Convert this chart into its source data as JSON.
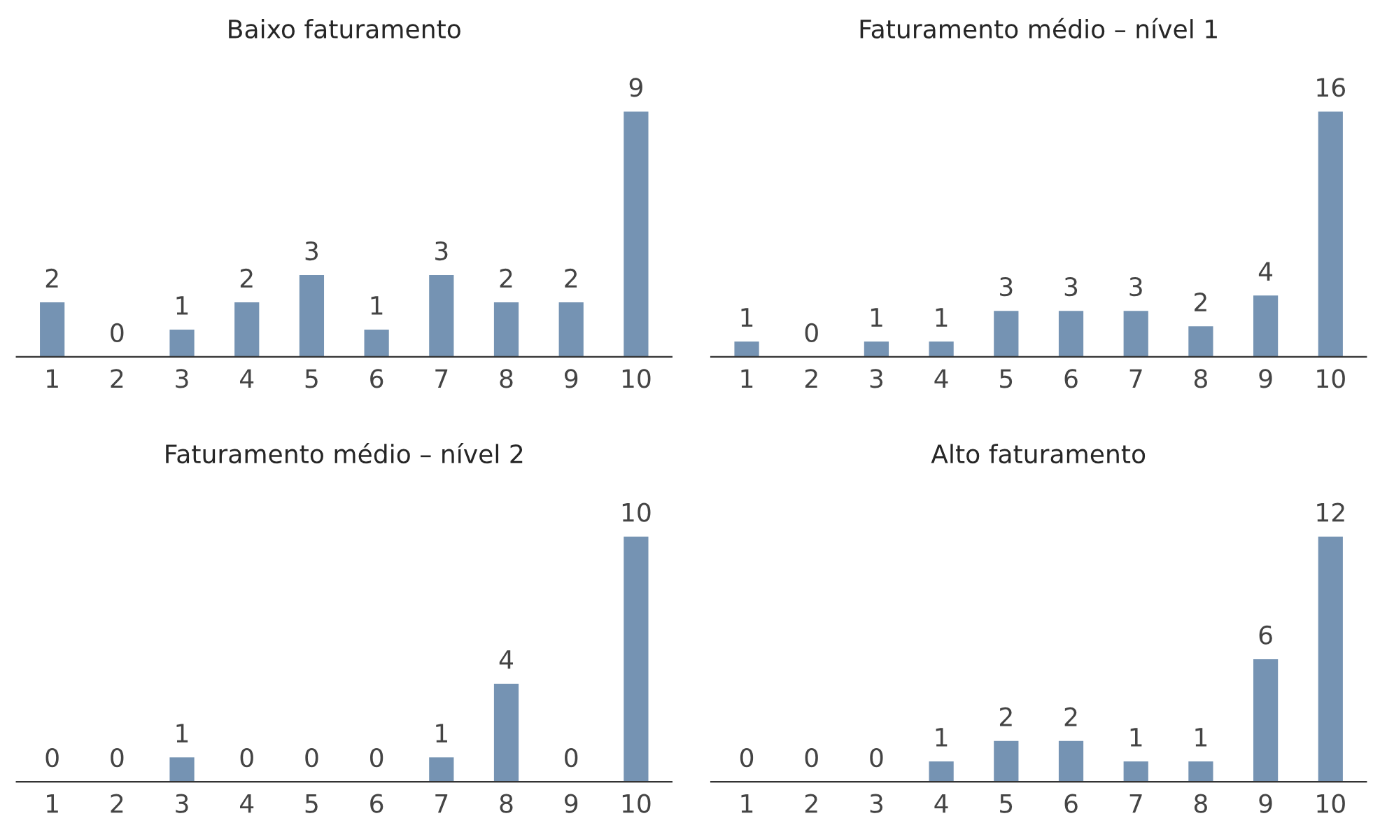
{
  "chart_data": [
    {
      "type": "bar",
      "title": "Baixo faturamento",
      "categories": [
        "1",
        "2",
        "3",
        "4",
        "5",
        "6",
        "7",
        "8",
        "9",
        "10"
      ],
      "values": [
        2,
        0,
        1,
        2,
        3,
        1,
        3,
        2,
        2,
        9
      ],
      "color": "#7593b3",
      "data_labels": true,
      "grid": false,
      "legend": false
    },
    {
      "type": "bar",
      "title": "Faturamento médio – nível 1",
      "categories": [
        "1",
        "2",
        "3",
        "4",
        "5",
        "6",
        "7",
        "8",
        "9",
        "10"
      ],
      "values": [
        1,
        0,
        1,
        1,
        3,
        3,
        3,
        2,
        4,
        16
      ],
      "color": "#7593b3",
      "data_labels": true,
      "grid": false,
      "legend": false
    },
    {
      "type": "bar",
      "title": "Faturamento médio – nível 2",
      "categories": [
        "1",
        "2",
        "3",
        "4",
        "5",
        "6",
        "7",
        "8",
        "9",
        "10"
      ],
      "values": [
        0,
        0,
        1,
        0,
        0,
        0,
        1,
        4,
        0,
        10
      ],
      "color": "#7593b3",
      "data_labels": true,
      "grid": false,
      "legend": false
    },
    {
      "type": "bar",
      "title": "Alto faturamento",
      "categories": [
        "1",
        "2",
        "3",
        "4",
        "5",
        "6",
        "7",
        "8",
        "9",
        "10"
      ],
      "values": [
        0,
        0,
        0,
        1,
        2,
        2,
        1,
        1,
        6,
        12
      ],
      "color": "#7593b3",
      "data_labels": true,
      "grid": false,
      "legend": false
    }
  ]
}
